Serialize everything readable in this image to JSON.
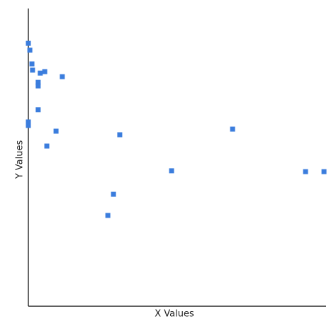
{
  "chart_data": {
    "type": "scatter",
    "x_label": "X Values",
    "y_label": "Y Values",
    "xlim": [
      0,
      100
    ],
    "ylim": [
      0,
      100
    ],
    "color": "#3b7ddd",
    "x": [
      0,
      0.5,
      1.2,
      1.4,
      4,
      5.5,
      3.3,
      3.3,
      11.4,
      3.3,
      0,
      0,
      9.3,
      6.2,
      30.7,
      68.6,
      48.1,
      93.1,
      99.3,
      28.6,
      26.7
    ],
    "values": [
      88.3,
      86,
      81.4,
      79.3,
      78.3,
      78.8,
      75.2,
      74,
      77.1,
      66,
      61.9,
      60.7,
      58.8,
      53.8,
      57.6,
      59.5,
      45.5,
      45.2,
      45.2,
      37.6,
      30.5
    ]
  }
}
